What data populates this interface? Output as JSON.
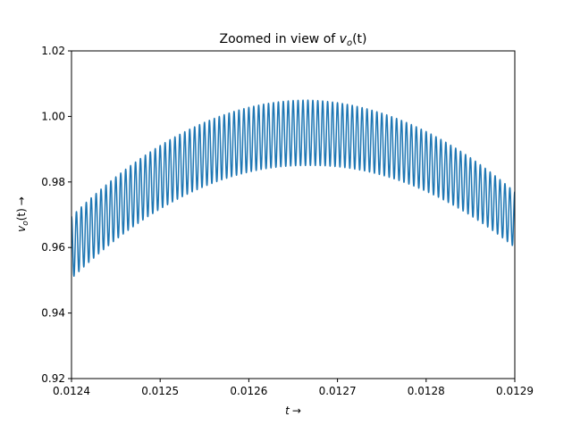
{
  "chart_data": {
    "type": "line",
    "title": {
      "prefix": "Zoomed in view of ",
      "var": "v",
      "sub": "o",
      "suffix": "(t)"
    },
    "xlabel": {
      "var": "t",
      "arrow": "→"
    },
    "ylabel": {
      "var": "v",
      "sub": "o",
      "mid": "(t)",
      "arrow": "→"
    },
    "xlim": [
      0.0124,
      0.0129
    ],
    "ylim": [
      0.92,
      1.02
    ],
    "xticks": [
      "0.0124",
      "0.0125",
      "0.0126",
      "0.0127",
      "0.0128",
      "0.0129"
    ],
    "yticks": [
      "0.92",
      "0.94",
      "0.96",
      "0.98",
      "1.00",
      "1.02"
    ],
    "grid": false,
    "series": [
      {
        "color": "#1f77b4",
        "description_model": {
          "carrier_center_peak_t": 0.012665,
          "envelope_peak_mid": 0.995,
          "envelope_drop_at_left": 0.035,
          "envelope_drop_at_right": 0.0265,
          "ripple_half_amplitude_left": 0.0095,
          "ripple_half_amplitude_center": 0.01,
          "ripple_half_amplitude_right": 0.0085,
          "ripple_frequency_hz": 180000
        },
        "x_start": 0.0124,
        "x_end": 0.0129,
        "samples": 3000
      }
    ]
  }
}
